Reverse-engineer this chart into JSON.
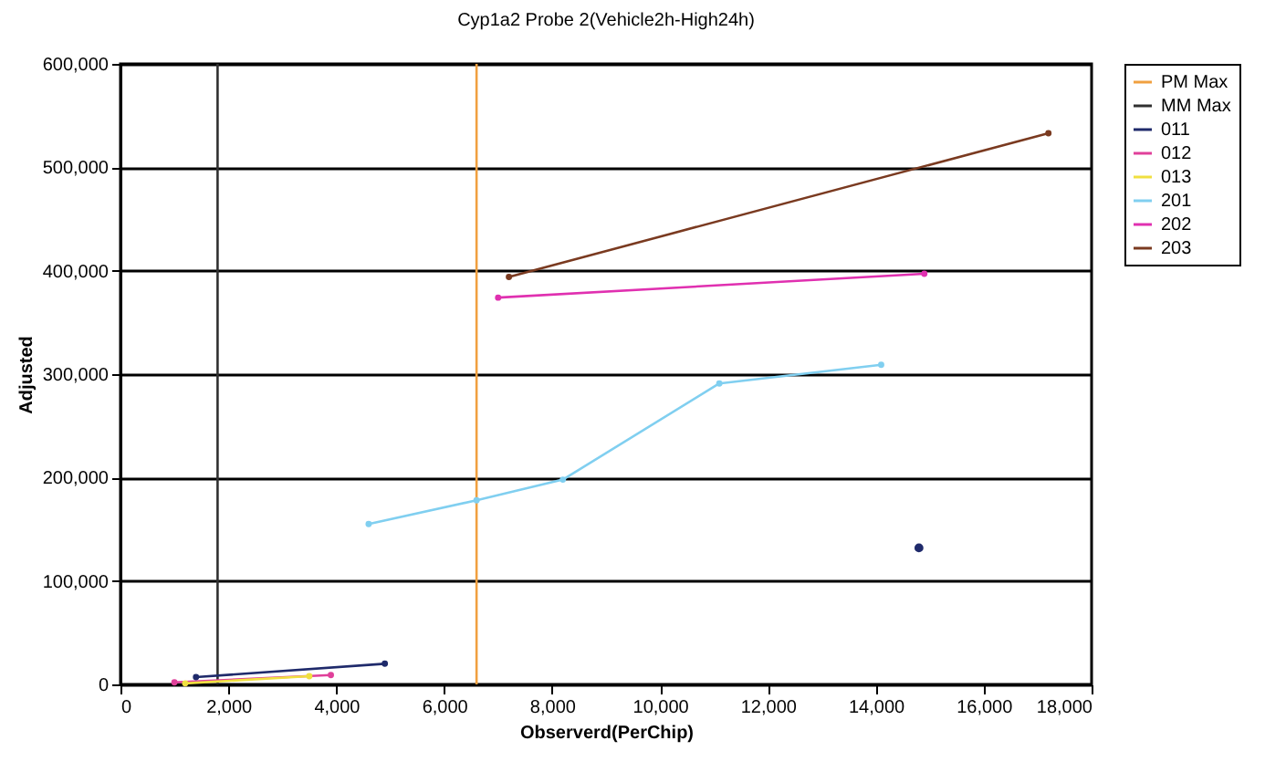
{
  "chart_data": {
    "type": "line",
    "title": "Cyp1a2 Probe 2(Vehicle2h-High24h)",
    "xlabel": "Observerd(PerChip)",
    "ylabel": "Adjusted",
    "xlim": [
      0,
      18000
    ],
    "xticks": [
      0,
      {
        "value": 2000,
        "label": "2,000"
      },
      {
        "value": 4000,
        "label": "4,000"
      },
      {
        "value": 6000,
        "label": "6,000"
      },
      {
        "value": 8000,
        "label": "8,000"
      },
      {
        "value": 10000,
        "label": "10,000"
      },
      {
        "value": 12000,
        "label": "12,000"
      },
      {
        "value": 14000,
        "label": "14,000"
      },
      {
        "value": 16000,
        "label": "16,000"
      },
      {
        "value": 18000,
        "label": "18,000"
      }
    ],
    "ylim": [
      0,
      600000
    ],
    "yticks": [
      0,
      {
        "value": 100000,
        "label": "100,000"
      },
      {
        "value": 200000,
        "label": "200,000"
      },
      {
        "value": 300000,
        "label": "300,000"
      },
      {
        "value": 400000,
        "label": "400,000"
      },
      {
        "value": 500000,
        "label": "500,000"
      },
      {
        "value": 600000,
        "label": "600,000"
      }
    ],
    "grid": "y",
    "legend": "right",
    "marker": "circle",
    "series": [
      {
        "name": "PM Max",
        "color": "#f0a040",
        "x": [
          6600,
          6600
        ],
        "values": [
          0,
          600000
        ],
        "marker": "none"
      },
      {
        "name": "MM Max",
        "color": "#303030",
        "x": [
          1800,
          1800
        ],
        "values": [
          0,
          600000
        ],
        "marker": "none"
      },
      {
        "name": "011",
        "color": "#1f2a6b",
        "x": [
          1400,
          4900
        ],
        "values": [
          7000,
          20000
        ]
      },
      {
        "type": "scatter",
        "color": "#1f2a6b",
        "x": [
          14800
        ],
        "values": [
          132000
        ]
      },
      {
        "name": "012",
        "color": "#e0409a",
        "x": [
          1000,
          3900
        ],
        "values": [
          2000,
          9000
        ]
      },
      {
        "name": "013",
        "color": "#f0e040",
        "x": [
          1200,
          3500
        ],
        "values": [
          1000,
          8000
        ]
      },
      {
        "name": "201",
        "color": "#80cff0",
        "x": [
          4600,
          6600,
          8200,
          11100,
          14100
        ],
        "values": [
          155000,
          178000,
          198000,
          291000,
          309000
        ]
      },
      {
        "name": "202",
        "color": "#e030b0",
        "x": [
          7000,
          14900
        ],
        "values": [
          374000,
          397000
        ]
      },
      {
        "name": "203",
        "color": "#7a3a20",
        "x": [
          7200,
          17200
        ],
        "values": [
          394000,
          533000
        ]
      }
    ]
  }
}
